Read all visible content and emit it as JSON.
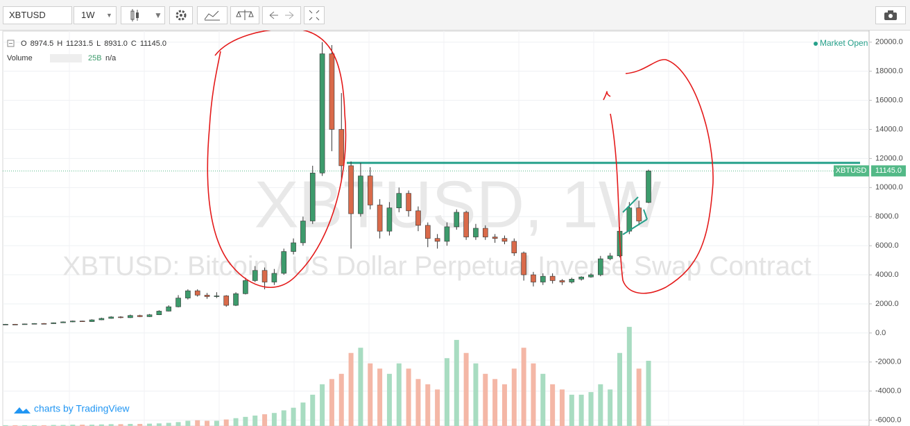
{
  "toolbar": {
    "symbol": "XBTUSD",
    "interval": "1W"
  },
  "legend": {
    "ohlc": [
      "O",
      "8974.5",
      "H",
      "11231.5",
      "L",
      "8931.0",
      "C",
      "11145.0"
    ],
    "status": "Market Open",
    "volume": {
      "label": "Volume",
      "value": "25B",
      "extra": "n/a"
    }
  },
  "watermark": {
    "title": "XBTUSD, 1W",
    "subtitle": "XBTUSD: Bitcoin / US Dollar Perpetual Inverse Swap Contract"
  },
  "branding": "charts by TradingView",
  "chart_data": {
    "type": "candlestick",
    "open": [
      580,
      600,
      590,
      620,
      650,
      640,
      700,
      760,
      820,
      780,
      900,
      1000,
      1100,
      1050,
      1200,
      1120,
      1250,
      1500,
      1800,
      2400,
      2900,
      2600,
      2500,
      2550,
      1900,
      2700,
      3600,
      4300,
      3500,
      4100,
      5600,
      6200,
      7700,
      11000,
      19200,
      14000,
      11500,
      8200,
      10800,
      8800,
      7000,
      8600,
      9600,
      8400,
      7400,
      6500,
      6300,
      7300,
      8300,
      6600,
      7200,
      6600,
      6500,
      6300,
      5500,
      4000,
      3500,
      3900,
      3600,
      3500,
      3700,
      3850,
      4000,
      5100,
      5300,
      7000,
      8600,
      8974.5
    ],
    "high": [
      620,
      620,
      640,
      670,
      680,
      720,
      790,
      850,
      840,
      940,
      1050,
      1150,
      1150,
      1260,
      1250,
      1300,
      1560,
      1900,
      2600,
      3000,
      3000,
      2750,
      2800,
      2600,
      2800,
      3800,
      4600,
      4500,
      4400,
      5800,
      6500,
      8000,
      11500,
      20000,
      19800,
      16500,
      11800,
      11700,
      11400,
      9200,
      9000,
      10000,
      9800,
      8700,
      7600,
      6800,
      7600,
      8500,
      8400,
      7500,
      7400,
      6800,
      6700,
      6500,
      5600,
      4200,
      4100,
      4100,
      3700,
      3800,
      3900,
      4100,
      5300,
      5500,
      7300,
      9000,
      9100,
      11231.5
    ],
    "low": [
      560,
      570,
      580,
      600,
      620,
      630,
      690,
      740,
      760,
      770,
      880,
      980,
      1010,
      1030,
      1090,
      1100,
      1230,
      1480,
      1760,
      2300,
      2500,
      2350,
      2400,
      1800,
      1850,
      2650,
      3500,
      3000,
      3300,
      4000,
      5400,
      6000,
      7500,
      10800,
      12500,
      10500,
      5800,
      8000,
      8500,
      6500,
      6700,
      8300,
      8000,
      7000,
      5900,
      5800,
      6000,
      7100,
      6400,
      6400,
      6400,
      6200,
      6100,
      5300,
      3600,
      3200,
      3300,
      3400,
      3300,
      3400,
      3600,
      3800,
      3900,
      5000,
      5200,
      6800,
      7400,
      8931
    ],
    "close": [
      600,
      590,
      620,
      650,
      640,
      700,
      760,
      820,
      780,
      900,
      1000,
      1100,
      1050,
      1200,
      1120,
      1250,
      1500,
      1800,
      2400,
      2900,
      2600,
      2500,
      2550,
      1900,
      2700,
      3600,
      4300,
      3500,
      4100,
      5600,
      6200,
      7700,
      11000,
      19200,
      14000,
      11500,
      8200,
      10800,
      8800,
      7000,
      8600,
      9600,
      8400,
      7400,
      6500,
      6300,
      7300,
      8300,
      6600,
      7200,
      6600,
      6500,
      6300,
      5500,
      4000,
      3500,
      3900,
      3600,
      3500,
      3700,
      3850,
      4000,
      5100,
      5300,
      7000,
      8600,
      7700,
      11145
    ],
    "volume": [
      0.3,
      0.3,
      0.3,
      0.3,
      0.3,
      0.4,
      0.4,
      0.5,
      0.5,
      0.5,
      0.6,
      0.7,
      0.7,
      0.8,
      0.8,
      0.9,
      1,
      1.2,
      1.5,
      2,
      2.2,
      2,
      2,
      2.5,
      3,
      3.5,
      4,
      4.5,
      5,
      6,
      7,
      9,
      12,
      16,
      18,
      20,
      28,
      30,
      24,
      22,
      20,
      24,
      22,
      18,
      16,
      14,
      26,
      33,
      28,
      24,
      20,
      18,
      16,
      22,
      30,
      24,
      20,
      16,
      14,
      12,
      12,
      13,
      16,
      14,
      28,
      38,
      22,
      25
    ],
    "up_color": "#3d9b6c",
    "down_color": "#d96a4a",
    "up_volume_color": "#a8dcc1",
    "down_volume_color": "#f4b7a6",
    "ylim": [
      -6400,
      20800
    ],
    "yticks": [
      {
        "value": 20000,
        "label": "20000.0"
      },
      {
        "value": 18000,
        "label": "18000.0"
      },
      {
        "value": 16000,
        "label": "16000.0"
      },
      {
        "value": 14000,
        "label": "14000.0"
      },
      {
        "value": 12000,
        "label": "12000.0"
      },
      {
        "value": 10000,
        "label": "10000.0"
      },
      {
        "value": 8000,
        "label": "8000.0"
      },
      {
        "value": 6000,
        "label": "6000.0"
      },
      {
        "value": 4000,
        "label": "4000.0"
      },
      {
        "value": 2000,
        "label": "2000.0"
      },
      {
        "value": 0,
        "label": "0.0"
      },
      {
        "value": -2000,
        "label": "-2000.0"
      },
      {
        "value": -4000,
        "label": "-4000.0"
      },
      {
        "value": -6000,
        "label": "-6000.0"
      }
    ],
    "grid": true,
    "last_price": {
      "symbol": "XBTUSD",
      "value": 11145,
      "label": "11145.0",
      "color": "#53b987"
    },
    "level_line": {
      "value": 11700,
      "color": "#26a08a"
    }
  }
}
